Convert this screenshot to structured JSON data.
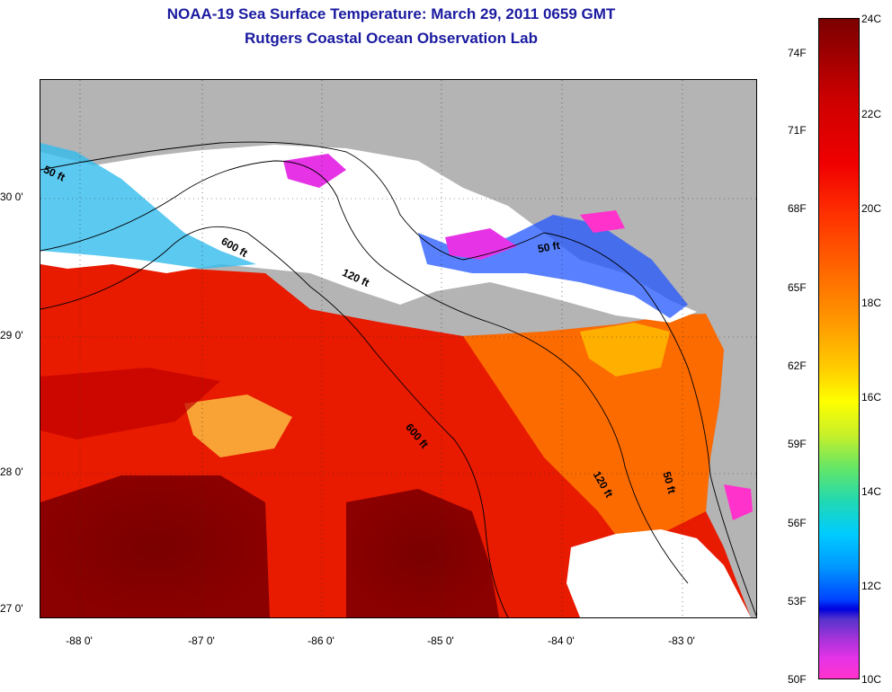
{
  "title": "NOAA-19 Sea Surface Temperature:  March 29, 2011 0659 GMT",
  "subtitle": "Rutgers Coastal Ocean Observation Lab",
  "map": {
    "latitude_labels": [
      "30 0'",
      "29 0'",
      "28 0'",
      "27 0'"
    ],
    "longitude_labels": [
      "-88 0'",
      "-87 0'",
      "-86 0'",
      "-85 0'",
      "-84 0'",
      "-83 0'"
    ],
    "contour_labels": {
      "c50_west": "50 ft",
      "c600_north": "600 ft",
      "c120_north": "120 ft",
      "c50_east": "50 ft",
      "c600_south": "600 ft",
      "c120_south": "120 ft",
      "c50_south": "50 ft"
    },
    "land_color": "#b4b4b4",
    "cloud_color": "#ffffff"
  },
  "colorbar": {
    "fahrenheit_labels": [
      "74F",
      "71F",
      "68F",
      "65F",
      "62F",
      "59F",
      "56F",
      "53F",
      "50F"
    ],
    "celsius_labels": [
      "24C",
      "22C",
      "20C",
      "18C",
      "16C",
      "14C",
      "12C",
      "10C"
    ],
    "colors": {
      "top": "#7a0000",
      "red": "#f00000",
      "orange": "#ff9900",
      "yellow": "#ffff00",
      "cyan": "#00ccff",
      "blue": "#0000dd",
      "bottom": "#ff33cc"
    }
  }
}
